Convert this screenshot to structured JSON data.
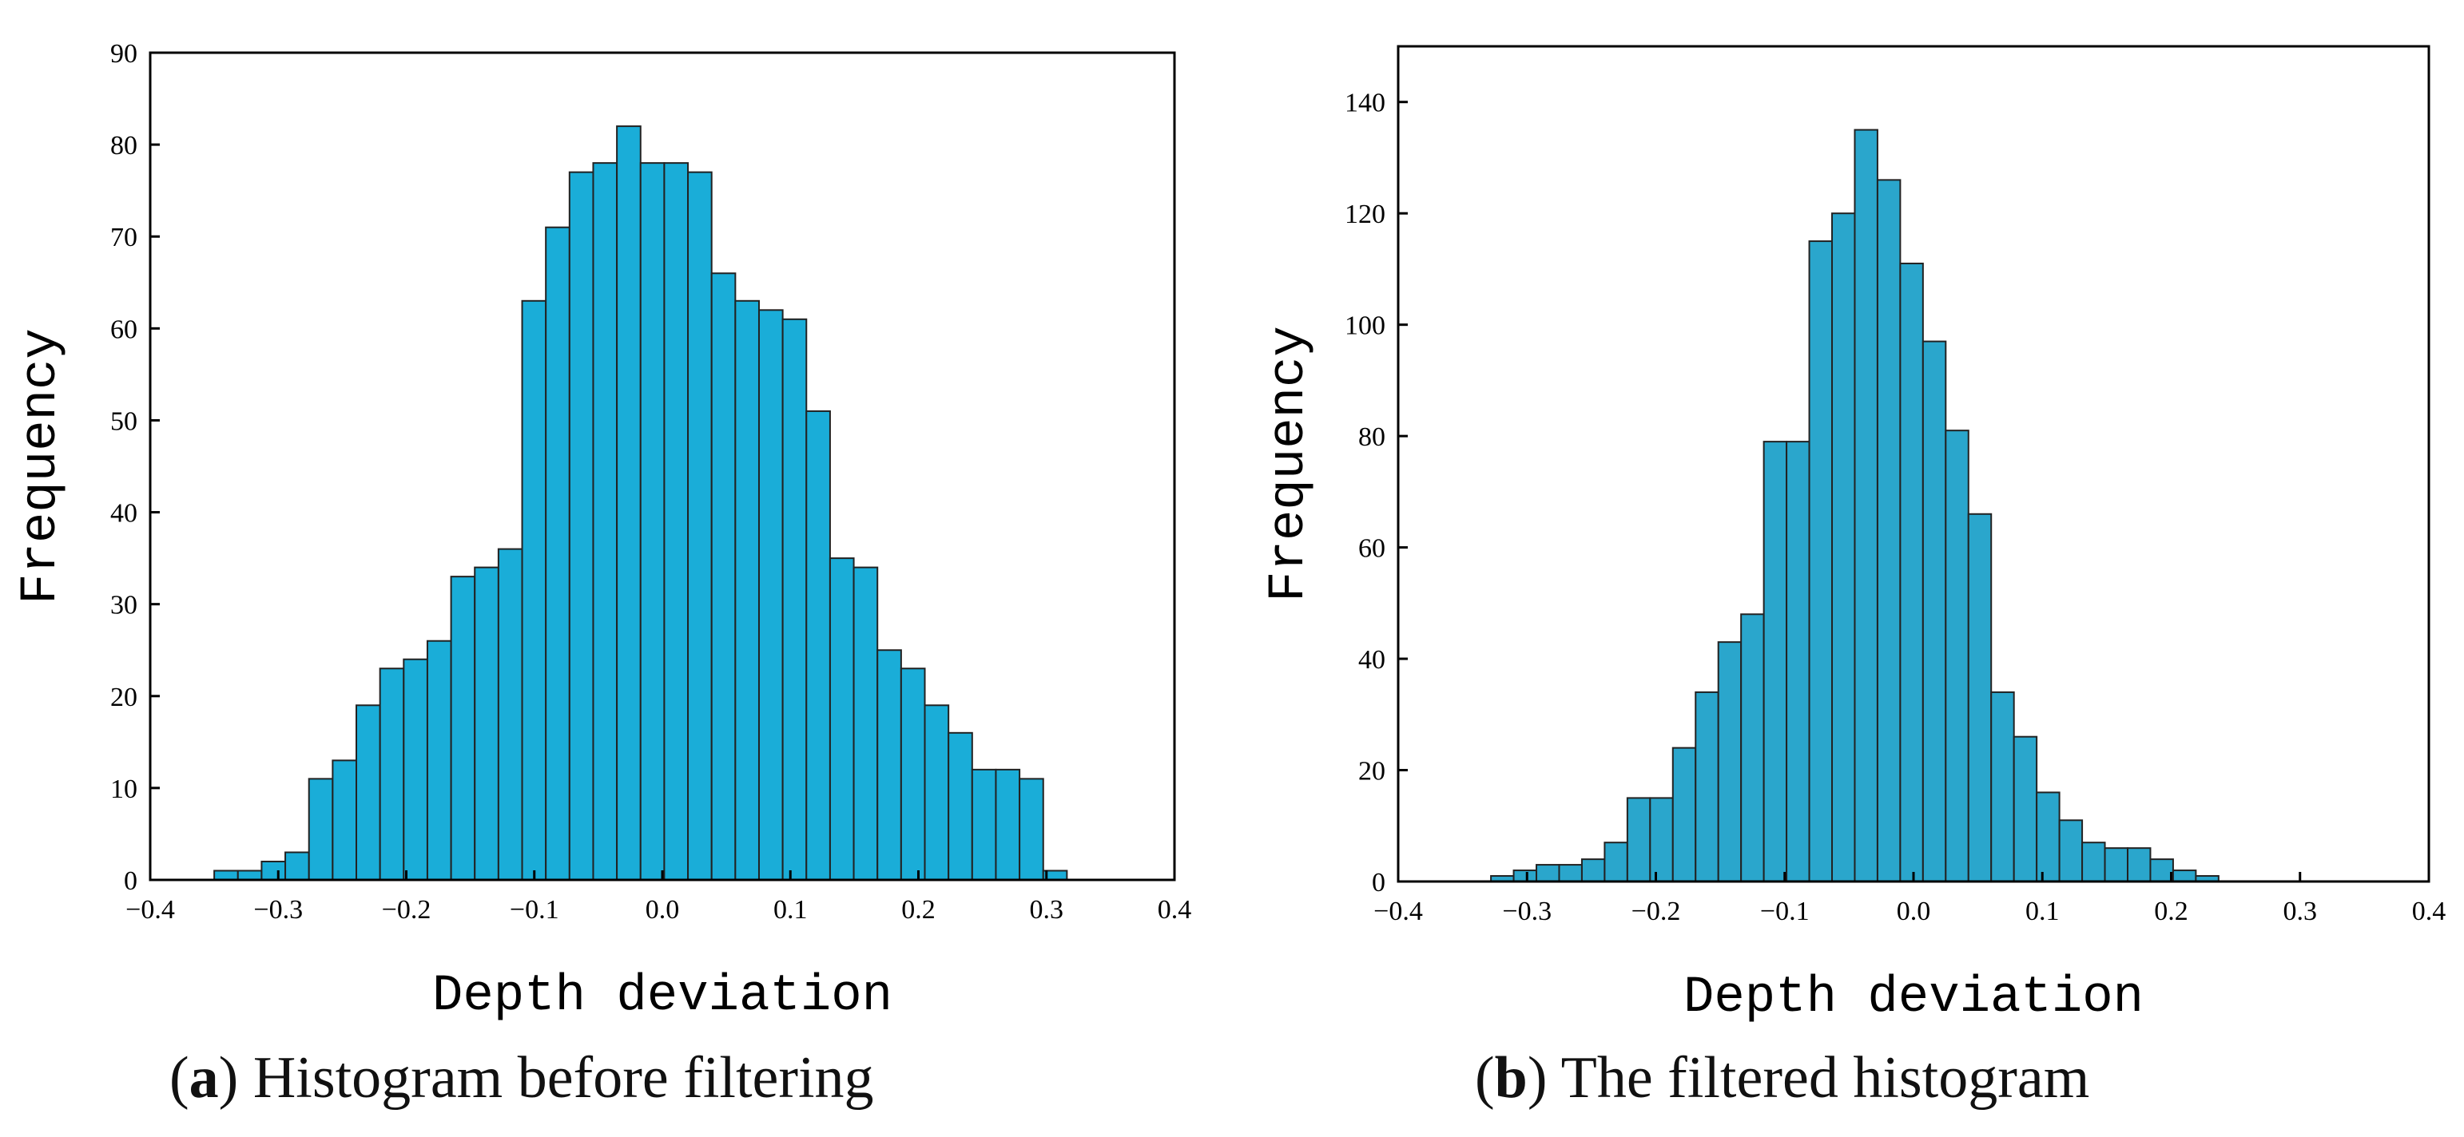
{
  "chart_data": [
    {
      "type": "bar",
      "subtype": "histogram",
      "panel": "a",
      "caption_letter": "a",
      "caption_text": "Histogram before filtering",
      "xlabel": "Depth deviation",
      "ylabel": "Frequency",
      "xlim": [
        -0.4,
        0.4
      ],
      "ylim": [
        0,
        90
      ],
      "xticks": [
        -0.4,
        -0.3,
        -0.2,
        -0.1,
        0.0,
        0.1,
        0.2,
        0.3,
        0.4
      ],
      "xtick_labels": [
        "−0.4",
        "−0.3",
        "−0.2",
        "−0.1",
        "0.0",
        "0.1",
        "0.2",
        "0.3",
        "0.4"
      ],
      "yticks": [
        0,
        10,
        20,
        30,
        40,
        50,
        60,
        70,
        80,
        90
      ],
      "ytick_labels": [
        "0",
        "10",
        "20",
        "30",
        "40",
        "50",
        "60",
        "70",
        "80",
        "90"
      ],
      "bin_start": -0.35,
      "bin_width": 0.0185,
      "values": [
        1,
        1,
        2,
        3,
        11,
        13,
        19,
        23,
        24,
        26,
        33,
        34,
        36,
        63,
        71,
        77,
        78,
        82,
        78,
        78,
        77,
        66,
        63,
        62,
        61,
        51,
        35,
        34,
        25,
        23,
        19,
        16,
        12,
        12,
        11,
        1
      ],
      "bar_color": "#1aadd8",
      "edge_color": "#222222"
    },
    {
      "type": "bar",
      "subtype": "histogram",
      "panel": "b",
      "caption_letter": "b",
      "caption_text": "The filtered histogram",
      "xlabel": "Depth deviation",
      "ylabel": "Frequency",
      "xlim": [
        -0.4,
        0.4
      ],
      "ylim": [
        0,
        150
      ],
      "xticks": [
        -0.4,
        -0.3,
        -0.2,
        -0.1,
        0.0,
        0.1,
        0.2,
        0.3,
        0.4
      ],
      "xtick_labels": [
        "−0.4",
        "−0.3",
        "−0.2",
        "−0.1",
        "0.0",
        "0.1",
        "0.2",
        "0.3",
        "0.4"
      ],
      "yticks": [
        0,
        20,
        40,
        60,
        80,
        100,
        120,
        140
      ],
      "ytick_labels": [
        "0",
        "20",
        "40",
        "60",
        "80",
        "100",
        "120",
        "140"
      ],
      "bin_start": -0.328,
      "bin_width": 0.01765,
      "values": [
        1,
        2,
        3,
        3,
        4,
        7,
        15,
        15,
        24,
        34,
        43,
        48,
        79,
        79,
        115,
        120,
        135,
        126,
        111,
        97,
        81,
        66,
        34,
        26,
        16,
        11,
        7,
        6,
        6,
        4,
        2,
        1
      ],
      "bar_color": "#2aa6cc",
      "edge_color": "#222222"
    }
  ]
}
